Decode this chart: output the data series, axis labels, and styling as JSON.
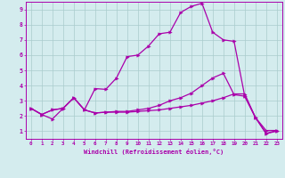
{
  "title": "",
  "xlabel": "Windchill (Refroidissement éolien,°C)",
  "ylabel": "",
  "xlim": [
    -0.5,
    23.5
  ],
  "ylim": [
    0.5,
    9.5
  ],
  "xticks": [
    0,
    1,
    2,
    3,
    4,
    5,
    6,
    7,
    8,
    9,
    10,
    11,
    12,
    13,
    14,
    15,
    16,
    17,
    18,
    19,
    20,
    21,
    22,
    23
  ],
  "yticks": [
    1,
    2,
    3,
    4,
    5,
    6,
    7,
    8,
    9
  ],
  "bg_color": "#d4ecee",
  "line_color": "#aa00aa",
  "grid_color": "#aacccc",
  "line1_x": [
    0,
    1,
    2,
    3,
    4,
    5,
    6,
    7,
    8,
    9,
    10,
    11,
    12,
    13,
    14,
    15,
    16,
    17,
    18,
    19,
    20,
    21,
    22,
    23
  ],
  "line1_y": [
    2.5,
    2.1,
    1.8,
    2.5,
    3.2,
    2.4,
    2.2,
    2.25,
    2.25,
    2.25,
    2.3,
    2.35,
    2.4,
    2.5,
    2.6,
    2.7,
    2.85,
    3.0,
    3.2,
    3.45,
    3.45,
    1.9,
    1.05,
    1.05
  ],
  "line2_x": [
    0,
    1,
    2,
    3,
    4,
    5,
    6,
    7,
    8,
    9,
    10,
    11,
    12,
    13,
    14,
    15,
    16,
    17,
    18,
    19,
    20,
    21,
    22,
    23
  ],
  "line2_y": [
    2.5,
    2.1,
    2.4,
    2.5,
    3.2,
    2.4,
    3.8,
    3.75,
    4.5,
    5.9,
    6.0,
    6.6,
    7.4,
    7.5,
    8.8,
    9.2,
    9.4,
    7.5,
    7.0,
    6.9,
    3.3,
    1.9,
    0.85,
    1.0
  ],
  "line3_x": [
    0,
    1,
    2,
    3,
    4,
    5,
    6,
    7,
    8,
    9,
    10,
    11,
    12,
    13,
    14,
    15,
    16,
    17,
    18,
    19,
    20,
    21,
    22,
    23
  ],
  "line3_y": [
    2.5,
    2.1,
    2.4,
    2.5,
    3.2,
    2.4,
    2.2,
    2.25,
    2.3,
    2.3,
    2.4,
    2.5,
    2.7,
    3.0,
    3.2,
    3.5,
    4.0,
    4.5,
    4.8,
    3.4,
    3.3,
    1.9,
    0.85,
    1.05
  ]
}
